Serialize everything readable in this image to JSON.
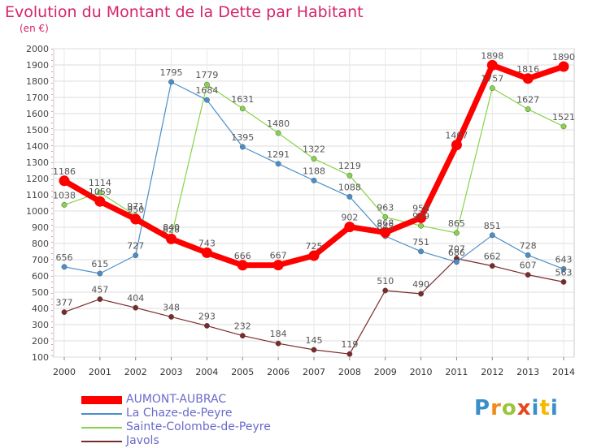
{
  "title": "Evolution du Montant de la Dette par Habitant",
  "subtitle": "(en €)",
  "logo_text": "Proxiti",
  "chart_data": {
    "type": "line",
    "title": "Evolution du Montant de la Dette par Habitant",
    "ylabel": "(en €)",
    "ylim": [
      100,
      2000
    ],
    "yticks": [
      100,
      200,
      300,
      400,
      500,
      600,
      700,
      800,
      900,
      1000,
      1100,
      1200,
      1300,
      1400,
      1500,
      1600,
      1700,
      1800,
      1900,
      2000
    ],
    "x": [
      "2000",
      "2001",
      "2002",
      "2003",
      "2004",
      "2005",
      "2006",
      "2007",
      "2008",
      "2009",
      "2010",
      "2011",
      "2012",
      "2013",
      "2014"
    ],
    "grid": true,
    "legend_position": "bottom-left",
    "series": [
      {
        "name": "AUMONT-AUBRAC",
        "color": "#ff0000",
        "values": [
          1186,
          1059,
          950,
          828,
          743,
          666,
          667,
          725,
          902,
          868,
          958,
          1407,
          1898,
          1816,
          1890
        ]
      },
      {
        "name": "La Chaze-de-Peyre",
        "color": "#4a8fc9",
        "values": [
          656,
          615,
          727,
          1795,
          1684,
          1395,
          1291,
          1188,
          1088,
          845,
          751,
          686,
          851,
          728,
          643
        ]
      },
      {
        "name": "Sainte-Colombe-de-Peyre",
        "color": "#86d449",
        "values": [
          1038,
          1114,
          971,
          840,
          1779,
          1631,
          1480,
          1322,
          1219,
          963,
          909,
          865,
          1757,
          1627,
          1521
        ]
      },
      {
        "name": "Javols",
        "color": "#7b2a2a",
        "values": [
          377,
          457,
          404,
          348,
          293,
          232,
          184,
          145,
          119,
          510,
          490,
          707,
          662,
          607,
          563
        ]
      }
    ]
  }
}
